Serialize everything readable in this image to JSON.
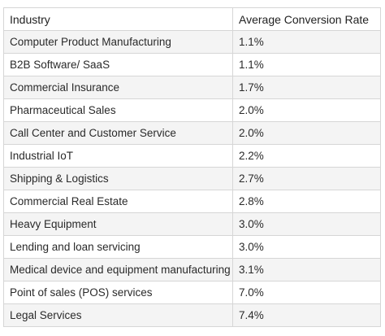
{
  "table": {
    "headers": [
      "Industry",
      "Average Conversion Rate"
    ],
    "rows": [
      [
        "Computer Product Manufacturing",
        "1.1%"
      ],
      [
        "B2B Software/ SaaS",
        "1.1%"
      ],
      [
        "Commercial Insurance",
        "1.7%"
      ],
      [
        "Pharmaceutical Sales",
        "2.0%"
      ],
      [
        "Call Center and Customer Service",
        "2.0%"
      ],
      [
        "Industrial IoT",
        "2.2%"
      ],
      [
        "Shipping & Logistics",
        "2.7%"
      ],
      [
        "Commercial Real Estate",
        "2.8%"
      ],
      [
        "Heavy Equipment",
        "3.0%"
      ],
      [
        "Lending and loan servicing",
        "3.0%"
      ],
      [
        "Medical device and equipment manufacturing",
        "3.1%"
      ],
      [
        "Point of sales (POS) services",
        "7.0%"
      ],
      [
        "Legal Services",
        "7.4%"
      ]
    ]
  }
}
